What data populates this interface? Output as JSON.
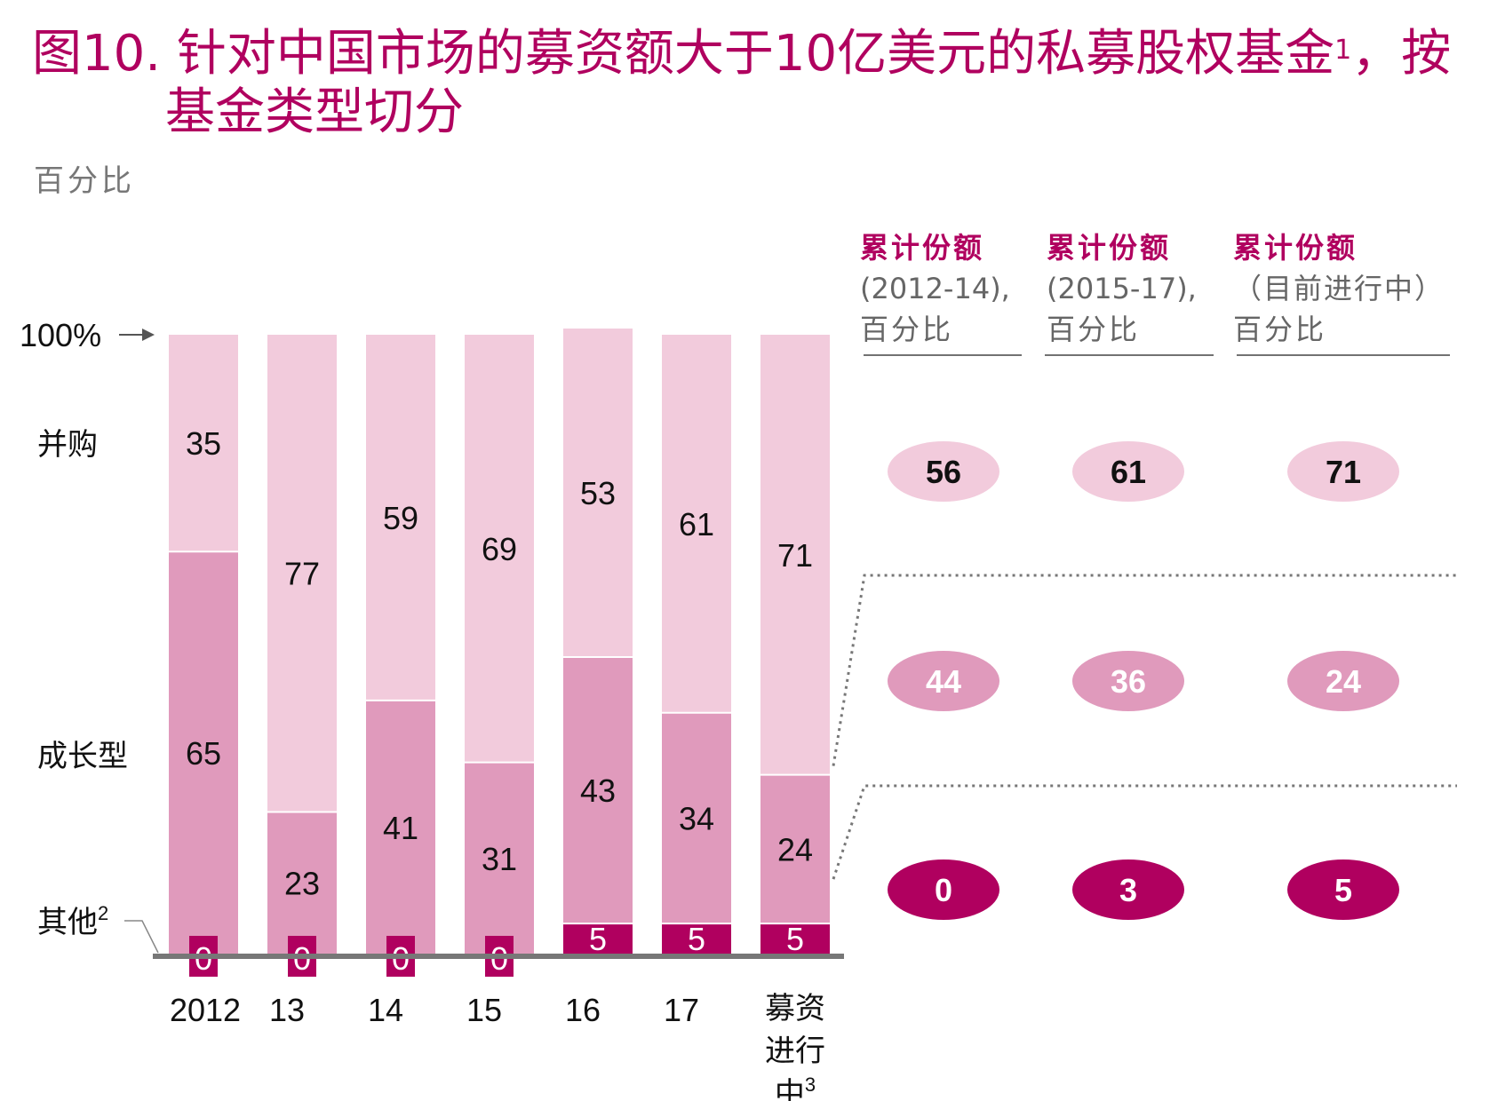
{
  "title": {
    "line1": "图10. 针对中国市场的募资额大于10亿美元的私募股权基金",
    "superscript": "1",
    "line1_end": "，按",
    "line2": "基金类型切分"
  },
  "unit_label": "百分比",
  "axis_marker": "100%",
  "row_labels": {
    "buyout": "并购",
    "growth": "成长型",
    "other": "其他",
    "other_sup": "2"
  },
  "summary_headers": [
    {
      "title": "累计份额",
      "period": "(2012-14),",
      "unit": "百分比"
    },
    {
      "title": "累计份额",
      "period": "(2015-17),",
      "unit": "百分比"
    },
    {
      "title": "累计份额",
      "period": "（目前进行中）",
      "unit": "百分比"
    }
  ],
  "summary_values": {
    "buyout": [
      56,
      61,
      71
    ],
    "growth": [
      44,
      36,
      24
    ],
    "other": [
      0,
      3,
      5
    ]
  },
  "colors": {
    "buyout": "#f2cbdc",
    "growth": "#e09abc",
    "other": "#b0005f",
    "title": "#b0005f",
    "axis": "#777777"
  },
  "chart_data": {
    "type": "bar",
    "stacked": true,
    "categories": [
      "2012",
      "13",
      "14",
      "15",
      "16",
      "17",
      "募资进行中"
    ],
    "category_superscripts": [
      "",
      "",
      "",
      "",
      "",
      "",
      "3"
    ],
    "series": [
      {
        "name": "其他",
        "values": [
          0,
          0,
          0,
          0,
          5,
          5,
          5
        ]
      },
      {
        "name": "成长型",
        "values": [
          65,
          23,
          41,
          31,
          43,
          34,
          24
        ]
      },
      {
        "name": "并购",
        "values": [
          35,
          77,
          59,
          69,
          53,
          61,
          71
        ]
      }
    ],
    "ylim": [
      0,
      100
    ]
  }
}
